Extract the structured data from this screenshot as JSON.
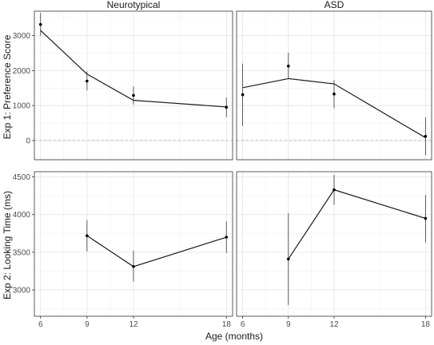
{
  "chart_data": {
    "type": "line",
    "xlabel": "Age (months)",
    "x_ticks": [
      6,
      9,
      12,
      18
    ],
    "xlim": [
      5.6,
      18.4
    ],
    "columns": [
      "Neurotypical",
      "ASD"
    ],
    "rows": [
      {
        "ylabel": "Exp 1: Preference Score",
        "ylim": [
          -550,
          3700
        ],
        "y_ticks": [
          0,
          1000,
          2000,
          3000
        ],
        "reference_line": 0,
        "panels": [
          {
            "group": "Neurotypical",
            "fitted_line": {
              "x": [
                6,
                9,
                12,
                18
              ],
              "y": [
                3150,
                1900,
                1150,
                960
              ]
            },
            "points": {
              "x": [
                6,
                9,
                12,
                18
              ],
              "y": [
                3320,
                1700,
                1290,
                950
              ]
            },
            "error_bars": [
              [
                6,
                3000,
                3650
              ],
              [
                9,
                1430,
                1980
              ],
              [
                12,
                1030,
                1550
              ],
              [
                18,
                670,
                1230
              ]
            ]
          },
          {
            "group": "ASD",
            "fitted_line": {
              "x": [
                6,
                9,
                12,
                18
              ],
              "y": [
                1510,
                1770,
                1620,
                80
              ]
            },
            "points": {
              "x": [
                6,
                9,
                12,
                18
              ],
              "y": [
                1310,
                2130,
                1330,
                120
              ]
            },
            "error_bars": [
              [
                6,
                420,
                2200
              ],
              [
                9,
                1760,
                2510
              ],
              [
                12,
                920,
                1730
              ],
              [
                18,
                -420,
                660
              ]
            ]
          }
        ]
      },
      {
        "ylabel": "Exp 2: Looking Time (ms)",
        "ylim": [
          2650,
          4570
        ],
        "y_ticks": [
          3000,
          3500,
          4000,
          4500
        ],
        "panels": [
          {
            "group": "Neurotypical",
            "fitted_line": {
              "x": [
                9,
                12,
                18
              ],
              "y": [
                3720,
                3310,
                3700
              ]
            },
            "points": {
              "x": [
                9,
                12,
                18
              ],
              "y": [
                3720,
                3310,
                3700
              ]
            },
            "error_bars": [
              [
                9,
                3510,
                3930
              ],
              [
                12,
                3110,
                3520
              ],
              [
                18,
                3490,
                3910
              ]
            ]
          },
          {
            "group": "ASD",
            "fitted_line": {
              "x": [
                9,
                12,
                18
              ],
              "y": [
                3410,
                4330,
                3950
              ]
            },
            "points": {
              "x": [
                9,
                12,
                18
              ],
              "y": [
                3410,
                4330,
                3950
              ]
            },
            "error_bars": [
              [
                9,
                2800,
                4020
              ],
              [
                12,
                4130,
                4530
              ],
              [
                18,
                3630,
                4260
              ]
            ]
          }
        ]
      }
    ],
    "grid": true
  }
}
